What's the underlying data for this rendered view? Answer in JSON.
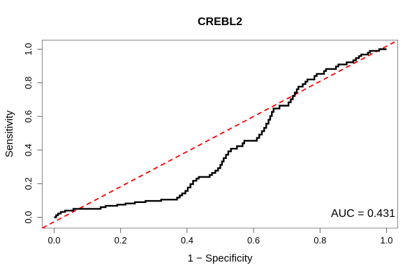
{
  "title": "CREBL2",
  "x_axis": {
    "label": "1 − Specificity",
    "tick_labels": [
      "0.0",
      "0.2",
      "0.4",
      "0.6",
      "0.8",
      "1.0"
    ],
    "tick_values": [
      0,
      0.2,
      0.4,
      0.6,
      0.8,
      1.0
    ]
  },
  "y_axis": {
    "label": "Sensitivity",
    "tick_labels": [
      "0.0",
      "0.2",
      "0.4",
      "0.6",
      "0.8",
      "1.0"
    ],
    "tick_values": [
      0,
      0.2,
      0.4,
      0.6,
      0.8,
      1.0
    ]
  },
  "annotation": {
    "auc_label": "AUC = 0.431"
  },
  "colors": {
    "roc_curve": "#000000",
    "diagonal": "#ff0000",
    "box": "#888888",
    "tick": "#666666",
    "text": "#000000",
    "background": "#ffffff"
  },
  "chart_data": {
    "type": "line",
    "subtype": "roc-step-curve",
    "title": "CREBL2",
    "xlabel": "1 − Specificity",
    "ylabel": "Sensitivity",
    "xlim": [
      0,
      1
    ],
    "ylim": [
      0,
      1
    ],
    "grid": false,
    "legend": null,
    "auc": 0.431,
    "series": [
      {
        "name": "ROC curve",
        "style": "step",
        "color": "#000000",
        "points": [
          [
            0,
            0
          ],
          [
            0.006,
            0.012
          ],
          [
            0.012,
            0.022
          ],
          [
            0.02,
            0.032
          ],
          [
            0.033,
            0.04
          ],
          [
            0.058,
            0.05
          ],
          [
            0.14,
            0.06
          ],
          [
            0.155,
            0.068
          ],
          [
            0.19,
            0.075
          ],
          [
            0.215,
            0.082
          ],
          [
            0.243,
            0.09
          ],
          [
            0.275,
            0.097
          ],
          [
            0.322,
            0.105
          ],
          [
            0.37,
            0.117
          ],
          [
            0.378,
            0.13
          ],
          [
            0.385,
            0.142
          ],
          [
            0.395,
            0.157
          ],
          [
            0.402,
            0.177
          ],
          [
            0.41,
            0.197
          ],
          [
            0.418,
            0.217
          ],
          [
            0.428,
            0.23
          ],
          [
            0.435,
            0.24
          ],
          [
            0.468,
            0.252
          ],
          [
            0.475,
            0.264
          ],
          [
            0.485,
            0.277
          ],
          [
            0.493,
            0.292
          ],
          [
            0.5,
            0.312
          ],
          [
            0.505,
            0.332
          ],
          [
            0.51,
            0.352
          ],
          [
            0.517,
            0.372
          ],
          [
            0.524,
            0.392
          ],
          [
            0.532,
            0.408
          ],
          [
            0.55,
            0.423
          ],
          [
            0.567,
            0.44
          ],
          [
            0.572,
            0.455
          ],
          [
            0.61,
            0.472
          ],
          [
            0.617,
            0.492
          ],
          [
            0.625,
            0.512
          ],
          [
            0.632,
            0.532
          ],
          [
            0.638,
            0.557
          ],
          [
            0.645,
            0.58
          ],
          [
            0.65,
            0.602
          ],
          [
            0.655,
            0.627
          ],
          [
            0.66,
            0.647
          ],
          [
            0.678,
            0.664
          ],
          [
            0.705,
            0.684
          ],
          [
            0.712,
            0.702
          ],
          [
            0.718,
            0.722
          ],
          [
            0.724,
            0.742
          ],
          [
            0.73,
            0.762
          ],
          [
            0.735,
            0.777
          ],
          [
            0.748,
            0.792
          ],
          [
            0.756,
            0.807
          ],
          [
            0.762,
            0.82
          ],
          [
            0.783,
            0.84
          ],
          [
            0.79,
            0.853
          ],
          [
            0.812,
            0.87
          ],
          [
            0.818,
            0.882
          ],
          [
            0.848,
            0.897
          ],
          [
            0.855,
            0.909
          ],
          [
            0.88,
            0.922
          ],
          [
            0.9,
            0.934
          ],
          [
            0.908,
            0.947
          ],
          [
            0.917,
            0.959
          ],
          [
            0.924,
            0.968
          ],
          [
            0.944,
            0.979
          ],
          [
            0.95,
            0.99
          ],
          [
            0.978,
            1.0
          ],
          [
            1,
            1
          ]
        ]
      },
      {
        "name": "chance diagonal",
        "style": "dashed",
        "color": "#ff0000",
        "points": [
          [
            0,
            0
          ],
          [
            1,
            1
          ]
        ]
      }
    ]
  }
}
